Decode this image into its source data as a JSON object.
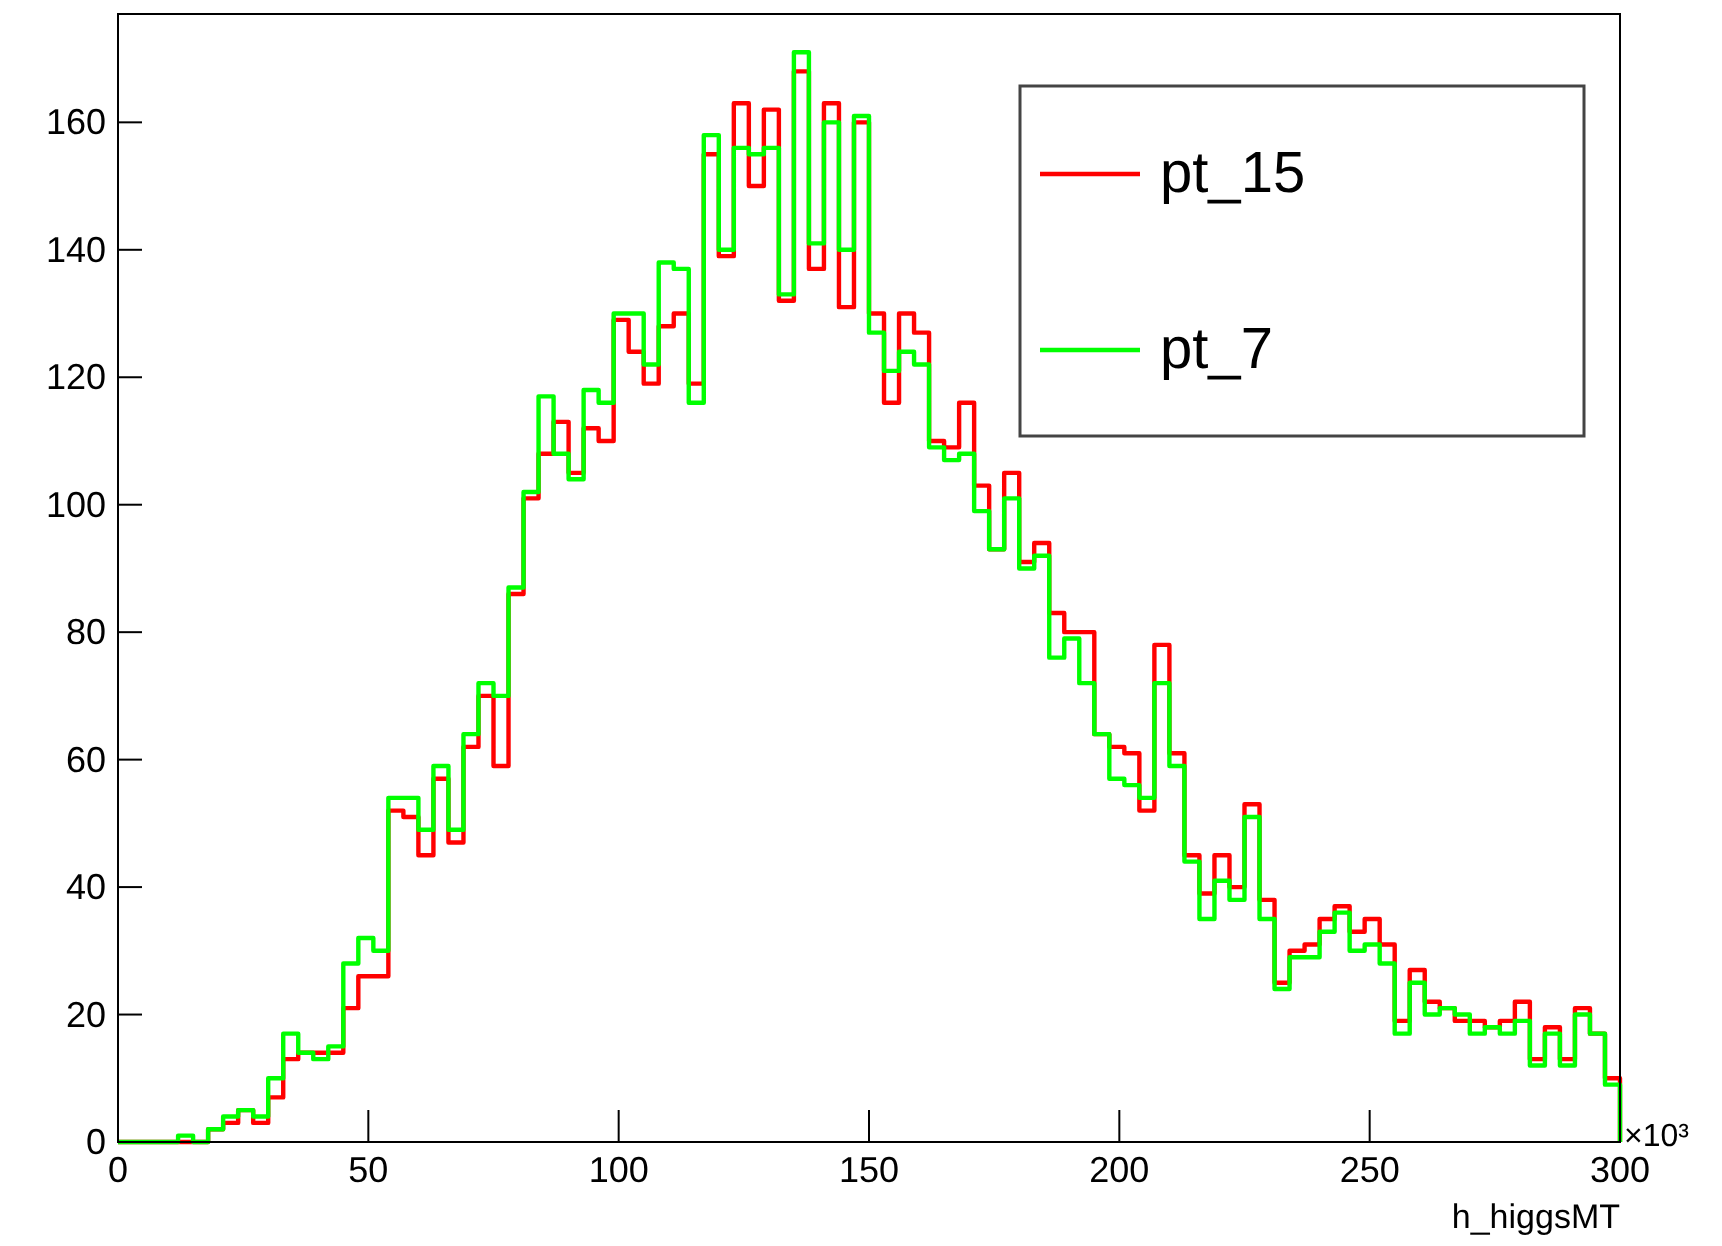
{
  "chart_data": {
    "type": "histogram",
    "xlabel": "h_higgsMT",
    "annotations": [
      "×10³"
    ],
    "bins": [
      0,
      3,
      6,
      9,
      12,
      15,
      18,
      21,
      24,
      27,
      30,
      33,
      36,
      39,
      42,
      45,
      48,
      51,
      54,
      57,
      60,
      63,
      66,
      69,
      72,
      75,
      78,
      81,
      84,
      87,
      90,
      93,
      96,
      99,
      102,
      105,
      108,
      111,
      114,
      117,
      120,
      123,
      126,
      129,
      132,
      135,
      138,
      141,
      144,
      147,
      150,
      153,
      156,
      159,
      162,
      165,
      168,
      171,
      174,
      177,
      180,
      183,
      186,
      189,
      192,
      195,
      198,
      201,
      204,
      207,
      210,
      213,
      216,
      219,
      222,
      225,
      228,
      231,
      234,
      237,
      240,
      243,
      246,
      249,
      252,
      255,
      258,
      261,
      264,
      267,
      270,
      273,
      276,
      279,
      282,
      285,
      288,
      291,
      294,
      297,
      300
    ],
    "series": [
      {
        "name": "pt_15",
        "color": "#ff0000",
        "values": [
          0,
          0,
          0,
          0,
          0,
          0,
          2,
          3,
          5,
          3,
          7,
          13,
          14,
          14,
          14,
          21,
          26,
          26,
          52,
          51,
          45,
          57,
          47,
          62,
          70,
          59,
          86,
          101,
          108,
          113,
          105,
          112,
          110,
          129,
          124,
          119,
          128,
          130,
          119,
          155,
          139,
          163,
          150,
          162,
          132,
          168,
          137,
          163,
          131,
          160,
          130,
          116,
          130,
          127,
          110,
          109,
          116,
          103,
          93,
          105,
          91,
          94,
          83,
          80,
          80,
          64,
          62,
          61,
          52,
          78,
          61,
          45,
          39,
          45,
          40,
          53,
          38,
          25,
          30,
          31,
          35,
          37,
          33,
          35,
          31,
          19,
          27,
          22,
          21,
          19,
          19,
          18,
          19,
          22,
          13,
          18,
          13,
          21,
          17,
          10
        ]
      },
      {
        "name": "pt_7",
        "color": "#00ff00",
        "values": [
          0,
          0,
          0,
          0,
          1,
          0,
          2,
          4,
          5,
          4,
          10,
          17,
          14,
          13,
          15,
          28,
          32,
          30,
          54,
          54,
          49,
          59,
          49,
          64,
          72,
          70,
          87,
          102,
          117,
          108,
          104,
          118,
          116,
          130,
          130,
          122,
          138,
          137,
          116,
          158,
          140,
          156,
          155,
          156,
          133,
          171,
          141,
          160,
          140,
          161,
          127,
          121,
          124,
          122,
          109,
          107,
          108,
          99,
          93,
          101,
          90,
          92,
          76,
          79,
          72,
          64,
          57,
          56,
          54,
          72,
          59,
          44,
          35,
          41,
          38,
          51,
          35,
          24,
          29,
          29,
          33,
          36,
          30,
          31,
          28,
          17,
          25,
          20,
          21,
          20,
          17,
          18,
          17,
          19,
          12,
          17,
          12,
          20,
          17,
          9
        ]
      }
    ],
    "xlim": [
      0,
      300
    ],
    "xticks": [
      0,
      50,
      100,
      150,
      200,
      250,
      300
    ],
    "ylim": [
      0,
      177
    ],
    "yticks": [
      0,
      20,
      40,
      60,
      80,
      100,
      120,
      140,
      160
    ],
    "grid": false,
    "legend": "top right"
  }
}
